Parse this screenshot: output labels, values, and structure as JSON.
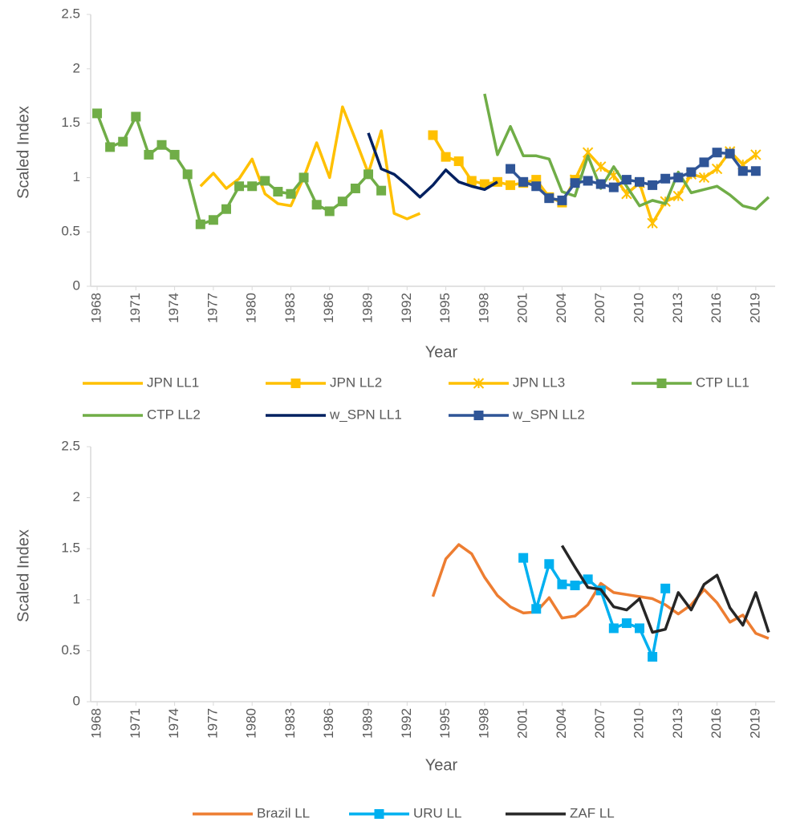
{
  "chart_data": [
    {
      "type": "line",
      "ylabel": "Scaled Index",
      "xlabel": "Year",
      "xlim": [
        1967.5,
        2020.5
      ],
      "ylim": [
        0,
        2.5
      ],
      "xticks": [
        1968,
        1971,
        1974,
        1977,
        1980,
        1983,
        1986,
        1989,
        1992,
        1995,
        1998,
        2001,
        2004,
        2007,
        2010,
        2013,
        2016,
        2019
      ],
      "yticks": [
        0,
        0.5,
        1,
        1.5,
        2,
        2.5
      ],
      "grid": false,
      "legend": "bottom",
      "series": [
        {
          "name": "JPN LL1",
          "color": "#FFC000",
          "marker": "none",
          "x": [
            1976,
            1977,
            1978,
            1979,
            1980,
            1981,
            1982,
            1983,
            1984,
            1985,
            1986,
            1987,
            1988,
            1989,
            1990,
            1991,
            1992,
            1993
          ],
          "values": [
            0.92,
            1.04,
            0.9,
            0.99,
            1.17,
            0.85,
            0.76,
            0.74,
            1.0,
            1.32,
            1.0,
            1.65,
            1.35,
            1.04,
            1.43,
            0.67,
            0.62,
            0.67
          ]
        },
        {
          "name": "JPN LL2",
          "color": "#FFC000",
          "marker": "square",
          "x": [
            1994,
            1995,
            1996,
            1997,
            1998,
            1999,
            2000,
            2001,
            2002,
            2003,
            2004,
            2005
          ],
          "values": [
            1.39,
            1.19,
            1.15,
            0.97,
            0.94,
            0.96,
            0.93,
            0.95,
            0.98,
            0.82,
            0.77,
            0.98
          ]
        },
        {
          "name": "JPN LL3",
          "color": "#FFC000",
          "marker": "asterisk",
          "x": [
            2005,
            2006,
            2007,
            2008,
            2009,
            2010,
            2011,
            2012,
            2013,
            2014,
            2015,
            2016,
            2017,
            2018,
            2019
          ],
          "values": [
            0.98,
            1.23,
            1.1,
            1.02,
            0.85,
            0.95,
            0.58,
            0.78,
            0.83,
            1.03,
            1.0,
            1.08,
            1.24,
            1.12,
            1.21
          ]
        },
        {
          "name": "CTP LL1",
          "color": "#70AD47",
          "marker": "square",
          "x": [
            1968,
            1969,
            1970,
            1971,
            1972,
            1973,
            1974,
            1975,
            1976,
            1977,
            1978,
            1979,
            1980,
            1981,
            1982,
            1983,
            1984,
            1985,
            1986,
            1987,
            1988,
            1989,
            1990
          ],
          "values": [
            1.59,
            1.28,
            1.33,
            1.56,
            1.21,
            1.3,
            1.21,
            1.03,
            0.57,
            0.61,
            0.71,
            0.92,
            0.92,
            0.97,
            0.87,
            0.85,
            1.0,
            0.75,
            0.69,
            0.78,
            0.9,
            1.03,
            0.88
          ]
        },
        {
          "name": "CTP LL2",
          "color": "#70AD47",
          "marker": "none",
          "x": [
            1998,
            1999,
            2000,
            2001,
            2002,
            2003,
            2004,
            2005,
            2006,
            2007,
            2008,
            2009,
            2010,
            2011,
            2012,
            2013,
            2014,
            2015,
            2016,
            2017,
            2018,
            2019,
            2020
          ],
          "values": [
            1.77,
            1.21,
            1.47,
            1.2,
            1.2,
            1.17,
            0.87,
            0.83,
            1.2,
            0.9,
            1.1,
            0.92,
            0.74,
            0.79,
            0.76,
            1.05,
            0.86,
            0.89,
            0.92,
            0.84,
            0.74,
            0.71,
            0.82
          ]
        },
        {
          "name": "w_SPN LL1",
          "color": "#002060",
          "marker": "none",
          "x": [
            1989,
            1990,
            1991,
            1992,
            1993,
            1994,
            1995,
            1996,
            1997,
            1998,
            1999
          ],
          "values": [
            1.41,
            1.08,
            1.03,
            0.93,
            0.82,
            0.93,
            1.07,
            0.96,
            0.92,
            0.89,
            0.96
          ]
        },
        {
          "name": "w_SPN LL2",
          "color": "#2F5597",
          "marker": "square",
          "x": [
            2000,
            2001,
            2002,
            2003,
            2004,
            2005,
            2006,
            2007,
            2008,
            2009,
            2010,
            2011,
            2012,
            2013,
            2014,
            2015,
            2016,
            2017,
            2018,
            2019
          ],
          "values": [
            1.08,
            0.96,
            0.92,
            0.81,
            0.79,
            0.95,
            0.97,
            0.94,
            0.91,
            0.98,
            0.96,
            0.93,
            0.99,
            1.0,
            1.05,
            1.14,
            1.23,
            1.22,
            1.06,
            1.06
          ]
        }
      ]
    },
    {
      "type": "line",
      "ylabel": "Scaled Index",
      "xlabel": "Year",
      "xlim": [
        1967.5,
        2020.5
      ],
      "ylim": [
        0,
        2.5
      ],
      "xticks": [
        1968,
        1971,
        1974,
        1977,
        1980,
        1983,
        1986,
        1989,
        1992,
        1995,
        1998,
        2001,
        2004,
        2007,
        2010,
        2013,
        2016,
        2019
      ],
      "yticks": [
        0,
        0.5,
        1,
        1.5,
        2,
        2.5
      ],
      "grid": false,
      "legend": "bottom",
      "series": [
        {
          "name": "Brazil LL",
          "color": "#ED7D31",
          "marker": "none",
          "x": [
            1994,
            1995,
            1996,
            1997,
            1998,
            1999,
            2000,
            2001,
            2002,
            2003,
            2004,
            2005,
            2006,
            2007,
            2008,
            2009,
            2010,
            2011,
            2012,
            2013,
            2014,
            2015,
            2016,
            2017,
            2018,
            2019,
            2020
          ],
          "values": [
            1.03,
            1.4,
            1.54,
            1.45,
            1.22,
            1.04,
            0.93,
            0.87,
            0.88,
            1.02,
            0.82,
            0.84,
            0.95,
            1.16,
            1.07,
            1.05,
            1.03,
            1.01,
            0.95,
            0.86,
            0.95,
            1.1,
            0.97,
            0.78,
            0.85,
            0.67,
            0.62
          ]
        },
        {
          "name": "URU LL",
          "color": "#00B0F0",
          "marker": "square",
          "x": [
            2001,
            2002,
            2003,
            2004,
            2005,
            2006,
            2007,
            2008,
            2009,
            2010,
            2011,
            2012
          ],
          "values": [
            1.41,
            0.91,
            1.35,
            1.15,
            1.14,
            1.2,
            1.09,
            0.72,
            0.77,
            0.72,
            0.44,
            1.11
          ]
        },
        {
          "name": "ZAF LL",
          "color": "#262626",
          "marker": "none",
          "x": [
            2004,
            2005,
            2006,
            2007,
            2008,
            2009,
            2010,
            2011,
            2012,
            2013,
            2014,
            2015,
            2016,
            2017,
            2018,
            2019,
            2020
          ],
          "values": [
            1.53,
            1.32,
            1.12,
            1.1,
            0.93,
            0.9,
            1.01,
            0.68,
            0.71,
            1.07,
            0.9,
            1.15,
            1.24,
            0.92,
            0.75,
            1.07,
            0.68
          ]
        }
      ]
    }
  ]
}
